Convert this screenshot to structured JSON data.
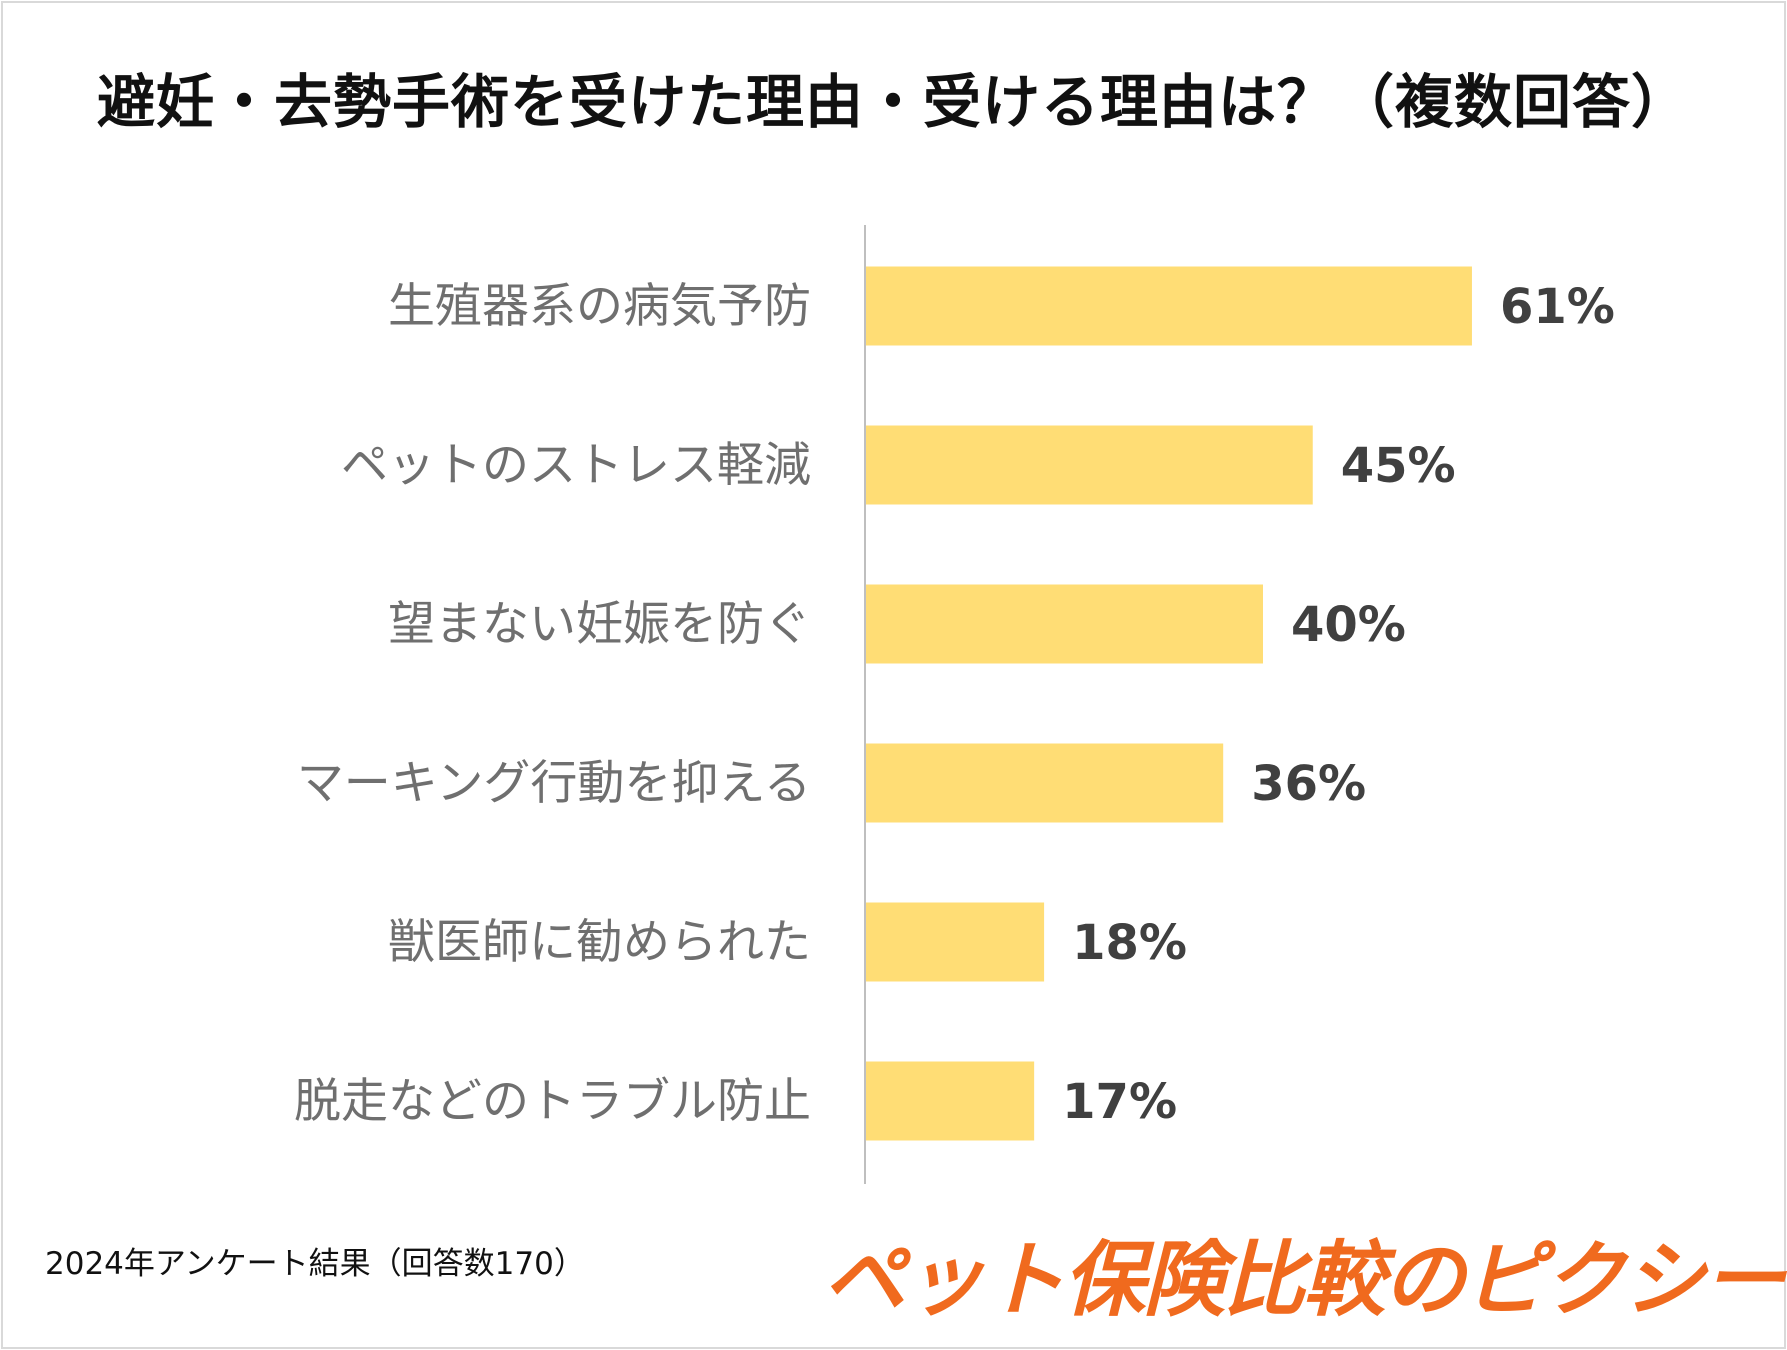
{
  "title": "避妊・去勢手術を受けた理由・受ける理由は？（複数回答）",
  "footnote": "2024年アンケート結果（回答数170）",
  "logo_text": "ペット保険比較のピクシー",
  "colors": {
    "bar": "#FFDD75",
    "axis": "#bfbfbf",
    "logo": "#f06a1e"
  },
  "chart_data": {
    "type": "bar",
    "orientation": "horizontal",
    "title": "避妊・去勢手術を受けた理由・受ける理由は？（複数回答）",
    "categories": [
      "生殖器系の病気予防",
      "ペットのストレス軽減",
      "望まない妊娠を防ぐ",
      "マーキング行動を抑える",
      "獣医師に勧められた",
      "脱走などのトラブル防止"
    ],
    "values": [
      61,
      45,
      40,
      36,
      18,
      17
    ],
    "value_labels": [
      "61%",
      "45%",
      "40%",
      "36%",
      "18%",
      "17%"
    ],
    "unit": "%",
    "xlim": [
      0,
      100
    ],
    "grid": false,
    "legend": "none"
  }
}
